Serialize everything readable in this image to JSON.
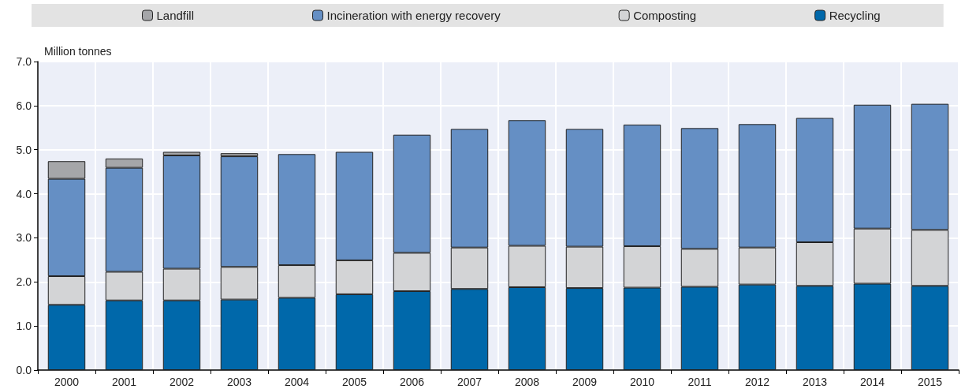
{
  "chart_data": {
    "type": "bar",
    "ylabel": "Million tonnes",
    "categories": [
      "2000",
      "2001",
      "2002",
      "2003",
      "2004",
      "2005",
      "2006",
      "2007",
      "2008",
      "2009",
      "2010",
      "2011",
      "2012",
      "2013",
      "2014",
      "2015"
    ],
    "stacked": true,
    "series": [
      {
        "name": "Recycling",
        "color": "#0068aa",
        "values": [
          1.48,
          1.58,
          1.58,
          1.6,
          1.64,
          1.72,
          1.79,
          1.84,
          1.88,
          1.86,
          1.87,
          1.89,
          1.94,
          1.91,
          1.96,
          1.91
        ]
      },
      {
        "name": "Composting",
        "color": "#d3d4d6",
        "values": [
          0.65,
          0.65,
          0.72,
          0.74,
          0.74,
          0.77,
          0.87,
          0.94,
          0.94,
          0.94,
          0.94,
          0.86,
          0.84,
          0.99,
          1.25,
          1.27
        ]
      },
      {
        "name": "Incineration with energy recovery",
        "color": "#658fc4",
        "values": [
          2.21,
          2.36,
          2.57,
          2.51,
          2.52,
          2.46,
          2.68,
          2.69,
          2.85,
          2.67,
          2.76,
          2.74,
          2.8,
          2.82,
          2.81,
          2.86
        ]
      },
      {
        "name": "Landfill",
        "color": "#a5a6a9",
        "values": [
          0.4,
          0.21,
          0.08,
          0.07,
          null,
          null,
          null,
          null,
          null,
          null,
          null,
          null,
          null,
          null,
          null,
          null
        ]
      }
    ],
    "ylim": [
      0,
      7
    ],
    "yticks": [
      {
        "value": 0,
        "label": "0.0"
      },
      {
        "value": 1,
        "label": "1.0"
      },
      {
        "value": 2,
        "label": "2.0"
      },
      {
        "value": 3,
        "label": "3.0"
      },
      {
        "value": 4,
        "label": "4.0"
      },
      {
        "value": 5,
        "label": "5.0"
      },
      {
        "value": 6,
        "label": "6.0"
      },
      {
        "value": 7,
        "label": "7.0"
      }
    ],
    "grid": true,
    "legend": "top"
  }
}
